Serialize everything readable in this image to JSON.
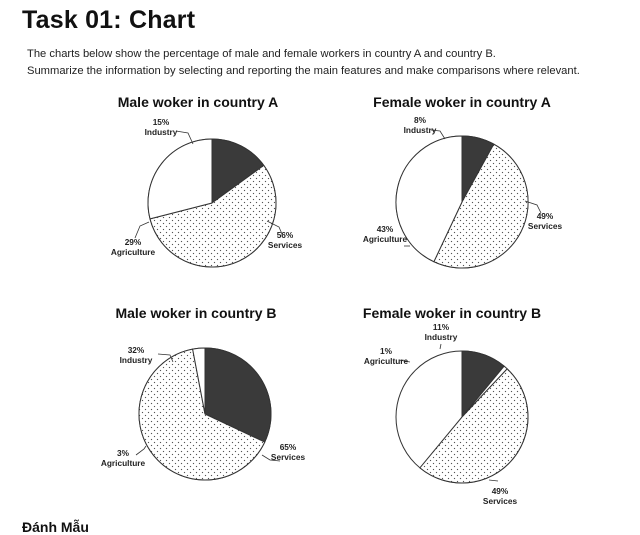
{
  "page": {
    "title": "Task 01: Chart",
    "intro_line1": "The charts below show the percentage of male and female workers in country A and country B.",
    "intro_line2": "Summarize the information by selecting and reporting the main features and make comparisons where relevant.",
    "cut_text": "Đánh Mẫu"
  },
  "colors": {
    "industry": "#3a3a3a",
    "agriculture": "#ffffff",
    "services": "#ffffff",
    "services_dots": "#555555",
    "outline": "#333333"
  },
  "chart_data": [
    {
      "type": "pie",
      "title": "Male woker in country A",
      "slices": [
        {
          "label": "Industry",
          "value": 15,
          "display": "15%"
        },
        {
          "label": "Services",
          "value": 56,
          "display": "56%"
        },
        {
          "label": "Agriculture",
          "value": 29,
          "display": "29%"
        }
      ]
    },
    {
      "type": "pie",
      "title": "Female woker in country A",
      "slices": [
        {
          "label": "Industry",
          "value": 8,
          "display": "8%"
        },
        {
          "label": "Services",
          "value": 49,
          "display": "49%"
        },
        {
          "label": "Agriculture",
          "value": 43,
          "display": "43%"
        }
      ]
    },
    {
      "type": "pie",
      "title": "Male woker in country B",
      "slices": [
        {
          "label": "Industry",
          "value": 32,
          "display": "32%"
        },
        {
          "label": "Services",
          "value": 65,
          "display": "65%"
        },
        {
          "label": "Agriculture",
          "value": 3,
          "display": "3%"
        }
      ]
    },
    {
      "type": "pie",
      "title": "Female woker in country B",
      "slices": [
        {
          "label": "Industry",
          "value": 11,
          "display": "11%"
        },
        {
          "label": "Services",
          "value": 49,
          "display": "49%"
        },
        {
          "label": "Agriculture",
          "value": 1,
          "display": "1%"
        }
      ]
    }
  ]
}
